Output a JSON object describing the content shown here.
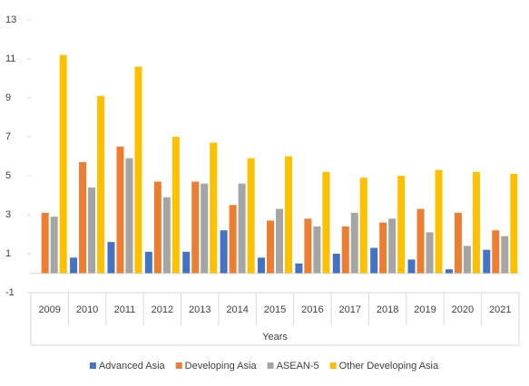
{
  "chart_data": {
    "type": "bar",
    "x_label": "Years",
    "categories": [
      "2009",
      "2010",
      "2011",
      "2012",
      "2013",
      "2014",
      "2015",
      "2016",
      "2017",
      "2018",
      "2019",
      "2020",
      "2021"
    ],
    "series": [
      {
        "name": "Advanced Asia",
        "color": "#4472c4",
        "values": [
          null,
          0.8,
          1.6,
          1.1,
          1.1,
          2.2,
          0.8,
          0.5,
          1.0,
          1.3,
          0.7,
          0.2,
          1.2
        ]
      },
      {
        "name": "Developing Asia",
        "color": "#ed7d31",
        "values": [
          3.1,
          5.7,
          6.5,
          4.7,
          4.7,
          3.5,
          2.7,
          2.8,
          2.4,
          2.6,
          3.3,
          3.1,
          2.2
        ]
      },
      {
        "name": "ASEAN-5",
        "color": "#a5a5a5",
        "values": [
          2.9,
          4.4,
          5.9,
          3.9,
          4.6,
          4.6,
          3.3,
          2.4,
          3.1,
          2.8,
          2.1,
          1.4,
          1.9
        ]
      },
      {
        "name": "Other Developing Asia",
        "color": "#ffc000",
        "values": [
          11.2,
          9.1,
          10.6,
          7.0,
          6.7,
          5.9,
          6.0,
          5.2,
          4.9,
          5.0,
          5.3,
          5.2,
          5.1
        ]
      }
    ],
    "ylim": [
      -1,
      13
    ],
    "yticks": [
      -1,
      1,
      3,
      5,
      7,
      9,
      11,
      13
    ],
    "grid": false,
    "legend": "bottom"
  }
}
